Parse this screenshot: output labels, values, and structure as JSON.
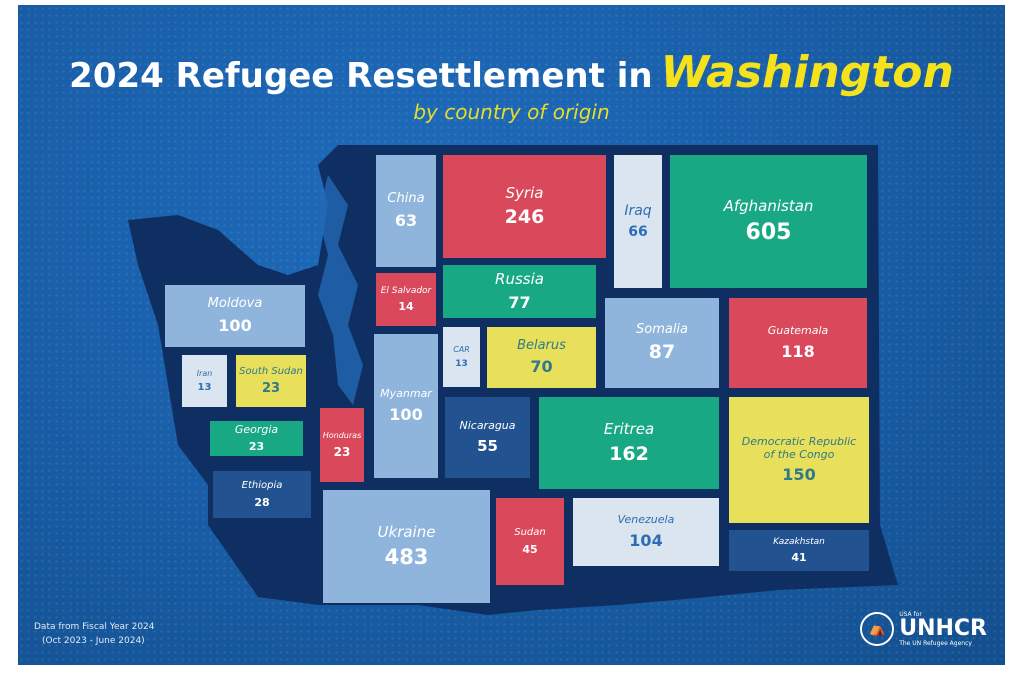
{
  "colors": {
    "red": "#d9485b",
    "green": "#19a884",
    "light": "#8fb5dc",
    "pale": "#dbe5ef",
    "yellow": "#e8df5a",
    "dark": "#22528f"
  },
  "header": {
    "title_prefix": "2024 Refugee Resettlement in",
    "title_highlight": "Washington",
    "subtitle": "by country of origin"
  },
  "footnote": {
    "line1": "Data from Fiscal Year 2024",
    "line2": "(Oct 2023 - June 2024)"
  },
  "logo": {
    "top": "USA for",
    "name": "UNHCR",
    "tagline": "The UN Refugee Agency"
  },
  "chart_data": {
    "type": "treemap",
    "title": "2024 Refugee Resettlement in Washington",
    "subtitle": "by country of origin",
    "unit": "refugees",
    "items": [
      {
        "country": "China",
        "value": 63,
        "color": "light"
      },
      {
        "country": "Syria",
        "value": 246,
        "color": "red"
      },
      {
        "country": "Iraq",
        "value": 66,
        "color": "pale"
      },
      {
        "country": "Afghanistan",
        "value": 605,
        "color": "green"
      },
      {
        "country": "El Salvador",
        "value": 14,
        "color": "red"
      },
      {
        "country": "Russia",
        "value": 77,
        "color": "green"
      },
      {
        "country": "Moldova",
        "value": 100,
        "color": "light"
      },
      {
        "country": "Somalia",
        "value": 87,
        "color": "light"
      },
      {
        "country": "Guatemala",
        "value": 118,
        "color": "red"
      },
      {
        "country": "CAR",
        "value": 13,
        "color": "pale"
      },
      {
        "country": "Belarus",
        "value": 70,
        "color": "yellow"
      },
      {
        "country": "Iran",
        "value": 13,
        "color": "pale"
      },
      {
        "country": "South Sudan",
        "value": 23,
        "color": "yellow"
      },
      {
        "country": "Myanmar",
        "value": 100,
        "color": "light"
      },
      {
        "country": "Nicaragua",
        "value": 55,
        "color": "dark"
      },
      {
        "country": "Eritrea",
        "value": 162,
        "color": "green"
      },
      {
        "country": "Democratic Republic of the Congo",
        "value": 150,
        "color": "yellow"
      },
      {
        "country": "Georgia",
        "value": 23,
        "color": "green"
      },
      {
        "country": "Honduras",
        "value": 23,
        "color": "red"
      },
      {
        "country": "Ethiopia",
        "value": 28,
        "color": "dark"
      },
      {
        "country": "Ukraine",
        "value": 483,
        "color": "light"
      },
      {
        "country": "Sudan",
        "value": 45,
        "color": "red"
      },
      {
        "country": "Venezuela",
        "value": 104,
        "color": "pale"
      },
      {
        "country": "Kazakhstan",
        "value": 41,
        "color": "dark"
      }
    ]
  }
}
